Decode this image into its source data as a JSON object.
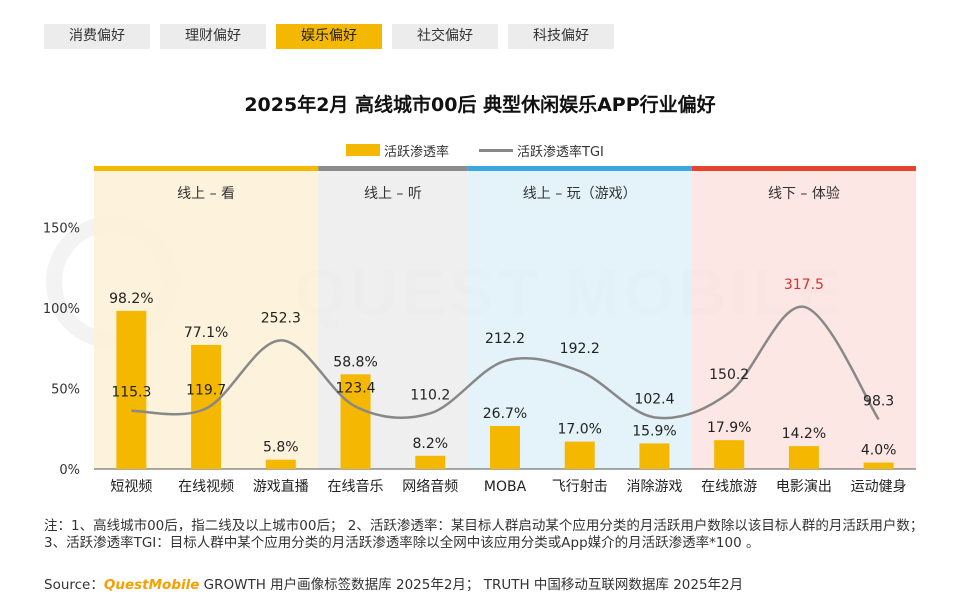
{
  "tabs": [
    {
      "label": "消费偏好",
      "active": false
    },
    {
      "label": "理财偏好",
      "active": false
    },
    {
      "label": "娱乐偏好",
      "active": true
    },
    {
      "label": "社交偏好",
      "active": false
    },
    {
      "label": "科技偏好",
      "active": false
    }
  ],
  "watermark": "QUEST MOBILE",
  "chart_data": {
    "type": "bar",
    "title": "2025年2月 高线城市00后 典型休闲娱乐APP行业偏好",
    "categories": [
      "短视频",
      "在线视频",
      "游戏直播",
      "在线音乐",
      "网络音频",
      "MOBA",
      "飞行射击",
      "消除游戏",
      "在线旅游",
      "电影演出",
      "运动健身"
    ],
    "series": [
      {
        "name": "活跃渗透率",
        "type": "bar",
        "values": [
          98.2,
          77.1,
          5.8,
          58.8,
          8.2,
          26.7,
          17.0,
          15.9,
          17.9,
          14.2,
          4.0
        ],
        "labels": [
          "98.2%",
          "77.1%",
          "5.8%",
          "58.8%",
          "8.2%",
          "26.7%",
          "17.0%",
          "15.9%",
          "17.9%",
          "14.2%",
          "4.0%"
        ]
      },
      {
        "name": "活跃渗透率TGI",
        "type": "line",
        "values": [
          115.3,
          119.7,
          252.3,
          123.4,
          110.2,
          212.2,
          192.2,
          102.4,
          150.2,
          317.5,
          98.3
        ],
        "labels": [
          "115.3",
          "119.7",
          "252.3",
          "123.4",
          "110.2",
          "212.2",
          "192.2",
          "102.4",
          "150.2",
          "317.5",
          "98.3"
        ]
      }
    ],
    "ylim": [
      0,
      160
    ],
    "yticks": [
      {
        "value": 0,
        "label": "0%"
      },
      {
        "value": 50,
        "label": "50%"
      },
      {
        "value": 100,
        "label": "100%"
      },
      {
        "value": 150,
        "label": "150%"
      }
    ],
    "groups": [
      {
        "label": "线上 – 看",
        "start": 0,
        "end": 2,
        "color": "#fdf1d6",
        "bar_color": "#f5b800"
      },
      {
        "label": "线上 – 听",
        "start": 3,
        "end": 4,
        "color": "#ececec",
        "bar_color": "#8c8c8c"
      },
      {
        "label": "线上 – 玩（游戏）",
        "start": 5,
        "end": 7,
        "color": "#dff0f8",
        "bar_color": "#3ba7e0"
      },
      {
        "label": "线下 – 体验",
        "start": 8,
        "end": 10,
        "color": "#fbe3e0",
        "bar_color": "#e4432d"
      }
    ],
    "highlight_color": "#d9302c",
    "highlight_index": 9,
    "bar_color": "#f5b800",
    "line_color": "#888888"
  },
  "note": "注：1、高线城市00后，指二线及以上城市00后； 2、活跃渗透率：某目标人群启动某个应用分类的月活跃用户数除以该目标人群的月活跃用户数；3、活跃渗透率TGI：目标人群中某个应用分类的月活跃渗透率除以全网中该应用分类或App媒介的月活跃渗透率*100 。",
  "source": {
    "prefix": "Source：",
    "brand": "QuestMobile",
    "text": " GROWTH 用户画像标签数据库 2025年2月； TRUTH 中国移动互联网数据库 2025年2月"
  }
}
